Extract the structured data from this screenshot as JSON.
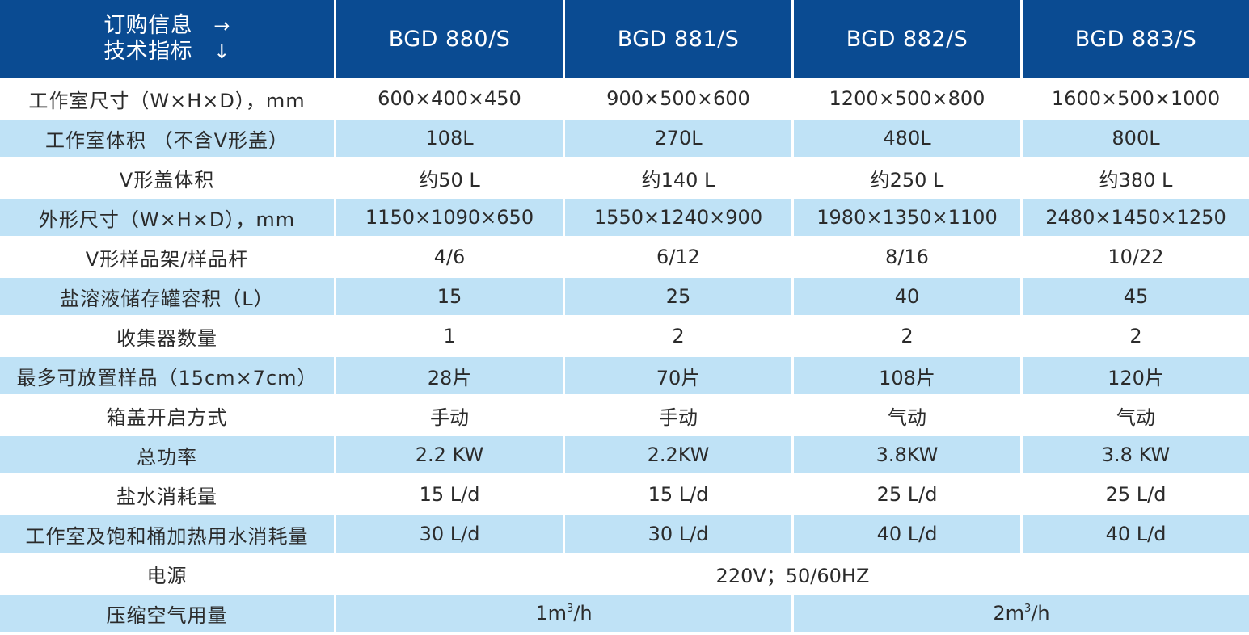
{
  "header": {
    "corner_line1": "订购信息",
    "corner_arrow1": "→",
    "corner_line2": "技术指标",
    "corner_arrow2": "↓",
    "models": [
      "BGD 880/S",
      "BGD 881/S",
      "BGD 882/S",
      "BGD 883/S"
    ]
  },
  "rows": [
    {
      "label": "工作室尺寸（W×H×D），mm",
      "values": [
        "600×400×450",
        "900×500×600",
        "1200×500×800",
        "1600×500×1000"
      ]
    },
    {
      "label": "工作室体积 （不含V形盖）",
      "values": [
        "108L",
        "270L",
        "480L",
        "800L"
      ]
    },
    {
      "label": "V形盖体积",
      "values": [
        "约50 L",
        "约140 L",
        "约250 L",
        "约380 L"
      ]
    },
    {
      "label": "外形尺寸（W×H×D），mm",
      "values": [
        "1150×1090×650",
        "1550×1240×900",
        "1980×1350×1100",
        "2480×1450×1250"
      ]
    },
    {
      "label": "V形样品架/样品杆",
      "values": [
        "4/6",
        "6/12",
        "8/16",
        "10/22"
      ]
    },
    {
      "label": "盐溶液储存罐容积（L）",
      "values": [
        "15",
        "25",
        "40",
        "45"
      ]
    },
    {
      "label": "收集器数量",
      "values": [
        "1",
        "2",
        "2",
        "2"
      ]
    },
    {
      "label": "最多可放置样品（15cm×7cm）",
      "values": [
        "28片",
        "70片",
        "108片",
        "120片"
      ]
    },
    {
      "label": "箱盖开启方式",
      "values": [
        "手动",
        "手动",
        "气动",
        "气动"
      ]
    },
    {
      "label": "总功率",
      "values": [
        "2.2 KW",
        "2.2KW",
        "3.8KW",
        "3.8 KW"
      ]
    },
    {
      "label": "盐水消耗量",
      "values": [
        "15 L/d",
        "15 L/d",
        "25 L/d",
        "25 L/d"
      ]
    },
    {
      "label": "工作室及饱和桶加热用水消耗量",
      "values": [
        "30 L/d",
        "30 L/d",
        "40 L/d",
        "40 L/d"
      ]
    }
  ],
  "power": {
    "label": "电源",
    "value": "220V；50/60HZ"
  },
  "air": {
    "label": "压缩空气用量",
    "value_a_pre": "1m",
    "value_a_sup": "3",
    "value_a_post": "/h",
    "value_b_pre": "2m",
    "value_b_sup": "3",
    "value_b_post": "/h"
  },
  "colors": {
    "header_bg": "#0a4b92",
    "row_shade": "#bfe2f6",
    "row_plain": "#ffffff",
    "text": "#2b2b2b"
  }
}
